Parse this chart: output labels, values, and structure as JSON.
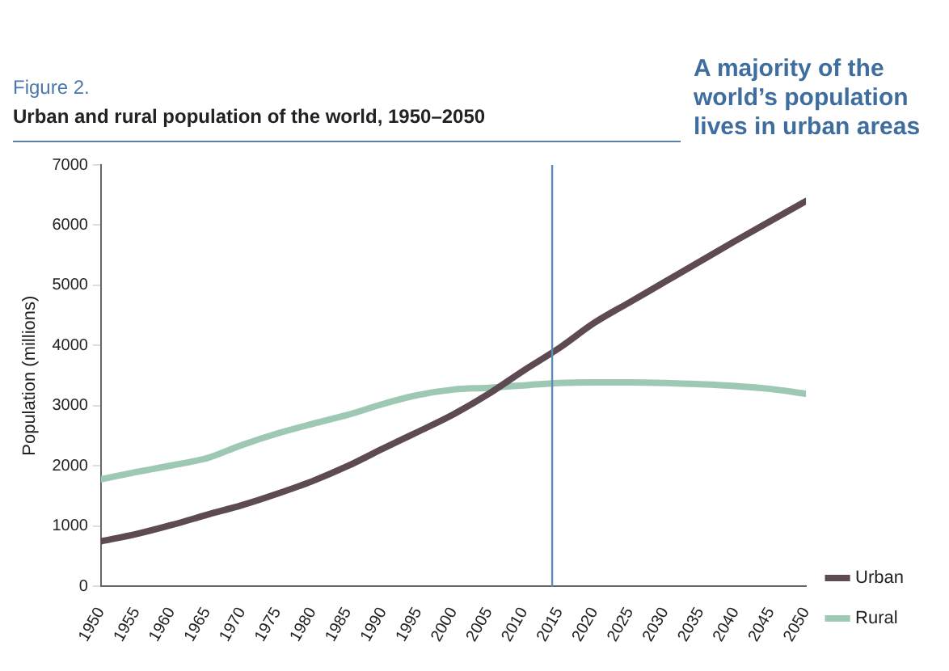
{
  "chart_data": {
    "type": "line",
    "title": "Figure 2.",
    "subtitle": "Urban and rural population of the world, 1950–2050",
    "annotations": [
      "A majority of the world’s population lives in urban areas"
    ],
    "ylabel": "Population (millions)",
    "x": [
      1950,
      1955,
      1960,
      1965,
      1970,
      1975,
      1980,
      1985,
      1990,
      1995,
      2000,
      2005,
      2010,
      2015,
      2020,
      2025,
      2030,
      2035,
      2040,
      2045,
      2050
    ],
    "series": [
      {
        "name": "Urban",
        "color": "#5e4a52",
        "values": [
          750,
          870,
          1020,
          1190,
          1350,
          1540,
          1750,
          2000,
          2290,
          2570,
          2860,
          3200,
          3590,
          3960,
          4380,
          4720,
          5060,
          5400,
          5740,
          6070,
          6400
        ]
      },
      {
        "name": "Rural",
        "color": "#9dc9b4",
        "values": [
          1780,
          1900,
          2010,
          2130,
          2350,
          2540,
          2700,
          2850,
          3030,
          3180,
          3270,
          3300,
          3340,
          3380,
          3390,
          3390,
          3380,
          3360,
          3330,
          3280,
          3200
        ]
      }
    ],
    "xlim": [
      1950,
      2050
    ],
    "xticks": [
      1950,
      1955,
      1960,
      1965,
      1970,
      1975,
      1980,
      1985,
      1990,
      1995,
      2000,
      2005,
      2010,
      2015,
      2020,
      2025,
      2030,
      2035,
      2040,
      2045,
      2050
    ],
    "ylim": [
      0,
      7000
    ],
    "yticks": [
      0,
      1000,
      2000,
      3000,
      4000,
      5000,
      6000,
      7000
    ],
    "ref_lines": [
      {
        "axis": "x",
        "value": 2014,
        "color": "#5b8db8"
      }
    ],
    "grid": false,
    "legend": "bottom right",
    "marker": "none",
    "line_style": "solid"
  }
}
